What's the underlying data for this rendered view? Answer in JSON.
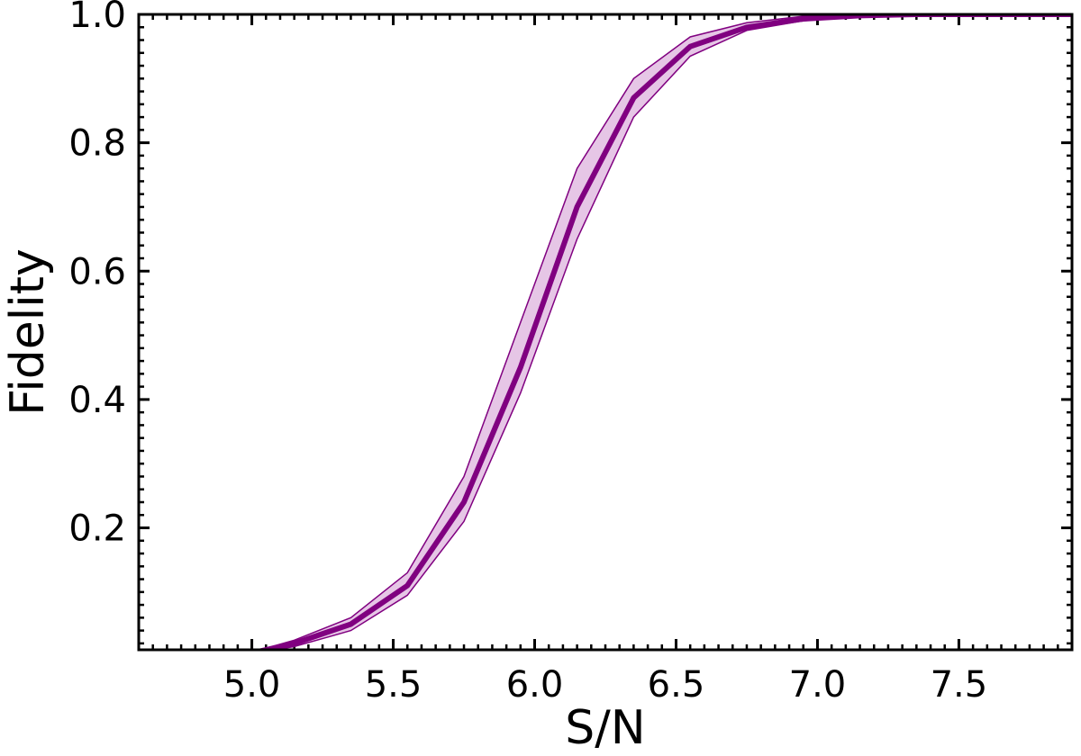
{
  "chart_data": {
    "type": "line",
    "title": "",
    "xlabel": "S/N",
    "ylabel": "Fidelity",
    "xlim": [
      4.6,
      7.9
    ],
    "ylim": [
      0.01,
      1.0
    ],
    "xticks": [
      5.0,
      5.5,
      6.0,
      6.5,
      7.0,
      7.5
    ],
    "xtick_labels": [
      "5.0",
      "5.5",
      "6.0",
      "6.5",
      "7.0",
      "7.5"
    ],
    "yticks": [
      0.2,
      0.4,
      0.6,
      0.8,
      1.0
    ],
    "ytick_labels": [
      "0.2",
      "0.4",
      "0.6",
      "0.8",
      "1.0"
    ],
    "x_minor_step": 0.05,
    "y_minor_step": 0.02,
    "grid": false,
    "color": "#800080",
    "band_color": "#e6c6e6",
    "series": [
      {
        "x": [
          4.95,
          5.15,
          5.35,
          5.55,
          5.75,
          5.95,
          6.15,
          6.35,
          6.55,
          6.75,
          6.95,
          7.15,
          7.35,
          7.55,
          7.75,
          7.9
        ],
        "values": [
          0.0,
          0.02,
          0.05,
          0.11,
          0.24,
          0.45,
          0.7,
          0.87,
          0.95,
          0.98,
          0.993,
          0.998,
          1.0,
          1.0,
          1.0,
          1.0
        ],
        "lower": [
          0.0,
          0.015,
          0.04,
          0.095,
          0.21,
          0.41,
          0.65,
          0.84,
          0.935,
          0.975,
          0.99,
          0.997,
          0.999,
          1.0,
          1.0,
          1.0
        ],
        "upper": [
          0.0,
          0.025,
          0.06,
          0.13,
          0.28,
          0.52,
          0.76,
          0.9,
          0.965,
          0.987,
          0.997,
          0.999,
          1.0,
          1.0,
          1.0,
          1.0
        ]
      }
    ]
  }
}
